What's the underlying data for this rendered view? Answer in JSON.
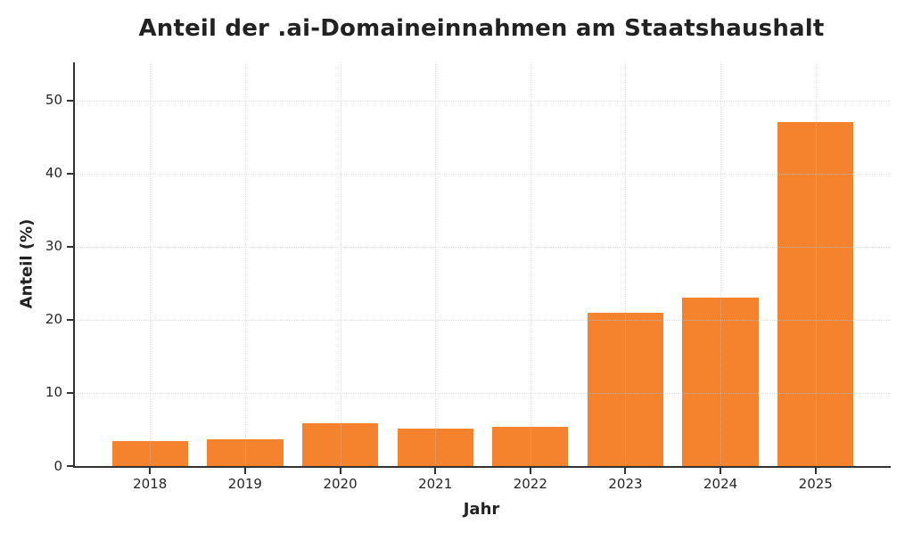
{
  "chart_data": {
    "type": "bar",
    "title": "Anteil der .ai-Domaineinnahmen am Staatshaushalt",
    "xlabel": "Jahr",
    "ylabel": "Anteil (%)",
    "categories": [
      "2018",
      "2019",
      "2020",
      "2021",
      "2022",
      "2023",
      "2024",
      "2025"
    ],
    "values": [
      3.4,
      3.7,
      5.8,
      5.1,
      5.4,
      21.0,
      23.0,
      47.0
    ],
    "yticks": [
      0,
      10,
      20,
      30,
      40,
      50
    ],
    "ylim": [
      0,
      55.2
    ],
    "xlim": [
      -0.79,
      7.79
    ],
    "bar_width": 0.8,
    "bar_color": "#f5822d",
    "axis_color": "#333333",
    "text_color": "#262626",
    "grid": true,
    "grid_style": "dotted",
    "grid_color": "#c5c5c5",
    "legend": "none",
    "background": "#ffffff"
  }
}
